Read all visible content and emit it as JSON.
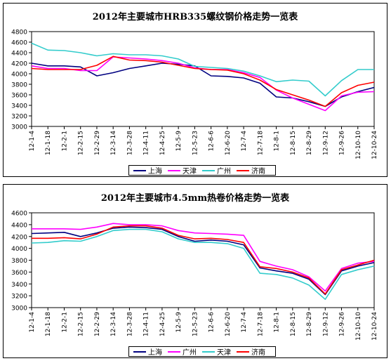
{
  "chart_data": [
    {
      "type": "line",
      "title": "2012年主要城市HRB335螺纹钢价格走势一览表",
      "ylim": [
        3000,
        4800
      ],
      "yticks": [
        3000,
        3200,
        3400,
        3600,
        3800,
        4000,
        4200,
        4400,
        4600,
        4800
      ],
      "xticks": [
        "12-1-4",
        "12-1-18",
        "12-2-1",
        "12-2-15",
        "12-2-29",
        "12-3-14",
        "12-3-28",
        "12-4-11",
        "12-4-25",
        "12-5-9",
        "12-5-23",
        "12-6-6",
        "12-6-20",
        "12-7-4",
        "12-7-18",
        "12-8-1",
        "12-8-15",
        "12-8-29",
        "12-9-12",
        "12-9-26",
        "12-10-10",
        "12-10-24"
      ],
      "grid": false,
      "series": [
        {
          "name": "上海",
          "color": "#000080",
          "values": [
            4200,
            4150,
            4150,
            4130,
            3960,
            4020,
            4100,
            4150,
            4200,
            4180,
            4150,
            3960,
            3950,
            3920,
            3820,
            3560,
            3540,
            3470,
            3380,
            3560,
            3660,
            3740
          ]
        },
        {
          "name": "天津",
          "color": "#ff00ff",
          "values": [
            4150,
            4100,
            4100,
            4060,
            4060,
            4320,
            4300,
            4280,
            4250,
            4200,
            4110,
            4080,
            4080,
            4020,
            3930,
            3690,
            3540,
            3420,
            3300,
            3580,
            3650,
            3660
          ]
        },
        {
          "name": "广州",
          "color": "#33cccc",
          "values": [
            4580,
            4450,
            4440,
            4400,
            4340,
            4380,
            4360,
            4360,
            4340,
            4280,
            4140,
            4120,
            4100,
            4050,
            3960,
            3850,
            3880,
            3860,
            3580,
            3870,
            4080,
            4080
          ]
        },
        {
          "name": "济南",
          "color": "#ff0000",
          "values": [
            4100,
            4080,
            4080,
            4080,
            4160,
            4330,
            4260,
            4250,
            4220,
            4160,
            4100,
            4080,
            4070,
            4000,
            3880,
            3700,
            3600,
            3500,
            3380,
            3640,
            3780,
            3840
          ]
        }
      ]
    },
    {
      "type": "line",
      "title": "2012年主要城市4.5mm热卷价格走势一览表",
      "ylim": [
        3000,
        4600
      ],
      "yticks": [
        3000,
        3200,
        3400,
        3600,
        3800,
        4000,
        4200,
        4400,
        4600
      ],
      "xticks": [
        "12-1-4",
        "12-1-18",
        "12-2-1",
        "12-2-15",
        "12-2-29",
        "12-3-14",
        "12-3-28",
        "12-4-11",
        "12-4-25",
        "12-5-9",
        "12-5-23",
        "12-6-6",
        "12-6-20",
        "12-7-4",
        "12-7-18",
        "12-8-1",
        "12-8-15",
        "12-8-29",
        "12-9-12",
        "12-9-26",
        "12-10-10",
        "12-10-24"
      ],
      "grid": false,
      "series": [
        {
          "name": "上海",
          "color": "#000080",
          "values": [
            4250,
            4260,
            4270,
            4200,
            4260,
            4340,
            4360,
            4350,
            4320,
            4200,
            4120,
            4140,
            4120,
            4060,
            3670,
            3620,
            3580,
            3480,
            3220,
            3620,
            3700,
            3760
          ]
        },
        {
          "name": "广州",
          "color": "#ff00ff",
          "values": [
            4330,
            4330,
            4330,
            4320,
            4360,
            4420,
            4400,
            4400,
            4380,
            4300,
            4260,
            4250,
            4240,
            4220,
            3780,
            3700,
            3640,
            3520,
            3280,
            3660,
            3750,
            3780
          ]
        },
        {
          "name": "天津",
          "color": "#33cccc",
          "values": [
            4090,
            4100,
            4130,
            4120,
            4200,
            4300,
            4320,
            4320,
            4280,
            4160,
            4100,
            4100,
            4080,
            4000,
            3580,
            3560,
            3500,
            3380,
            3140,
            3560,
            3640,
            3700
          ]
        },
        {
          "name": "济南",
          "color": "#ff0000",
          "values": [
            4170,
            4170,
            4180,
            4160,
            4240,
            4360,
            4380,
            4380,
            4340,
            4220,
            4160,
            4170,
            4150,
            4100,
            3690,
            3660,
            3600,
            3500,
            3230,
            3640,
            3720,
            3800
          ]
        }
      ]
    }
  ]
}
